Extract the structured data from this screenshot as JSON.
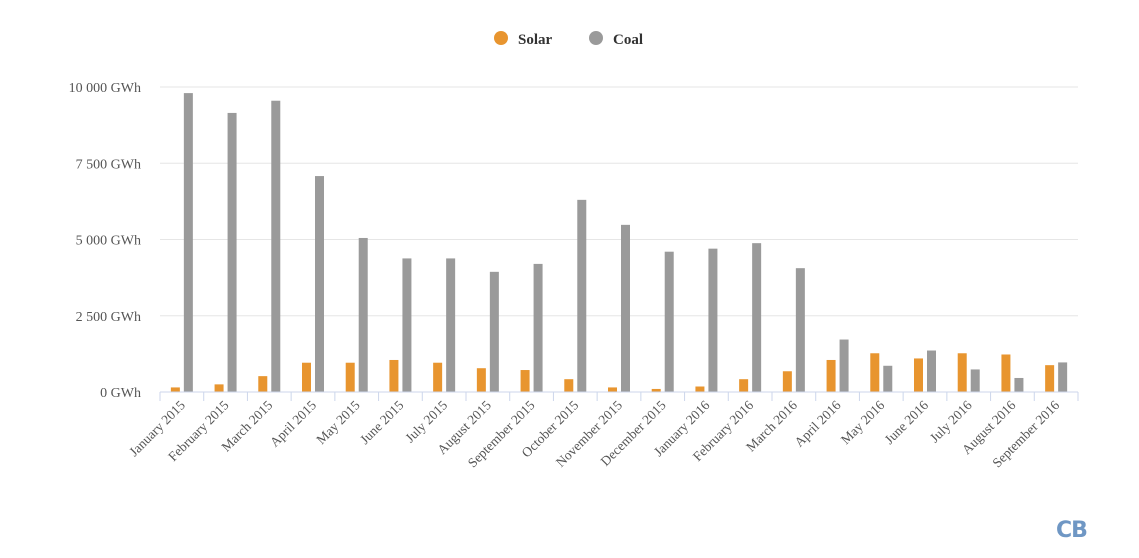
{
  "chart_data": {
    "type": "bar",
    "title": "",
    "xlabel": "",
    "ylabel": "",
    "categories": [
      "January 2015",
      "February 2015",
      "March 2015",
      "April 2015",
      "May 2015",
      "June 2015",
      "July 2015",
      "August 2015",
      "September 2015",
      "October 2015",
      "November 2015",
      "December 2015",
      "January 2016",
      "February 2016",
      "March 2016",
      "April 2016",
      "May 2016",
      "June 2016",
      "July 2016",
      "August 2016",
      "September 2016"
    ],
    "series": [
      {
        "name": "Solar",
        "color": "#e8952f",
        "values": [
          150,
          250,
          520,
          960,
          960,
          1050,
          960,
          780,
          720,
          420,
          150,
          100,
          180,
          420,
          680,
          1050,
          1270,
          1100,
          1270,
          1230,
          880
        ]
      },
      {
        "name": "Coal",
        "color": "#9a9a9a",
        "values": [
          9800,
          9150,
          9550,
          7080,
          5050,
          4380,
          4380,
          3940,
          4200,
          6300,
          5480,
          4600,
          4700,
          4880,
          4060,
          1720,
          860,
          1360,
          740,
          460,
          970
        ]
      }
    ],
    "ylim": [
      0,
      10000
    ],
    "yticks": [
      0,
      2500,
      5000,
      7500,
      10000
    ],
    "ytick_labels": [
      "0 GWh",
      "2 500 GWh",
      "5 000 GWh",
      "7 500 GWh",
      "10 000 GWh"
    ],
    "grid": true,
    "legend_position": "top-center"
  },
  "watermark": {
    "text": "CB",
    "color": "#6f97c4"
  }
}
